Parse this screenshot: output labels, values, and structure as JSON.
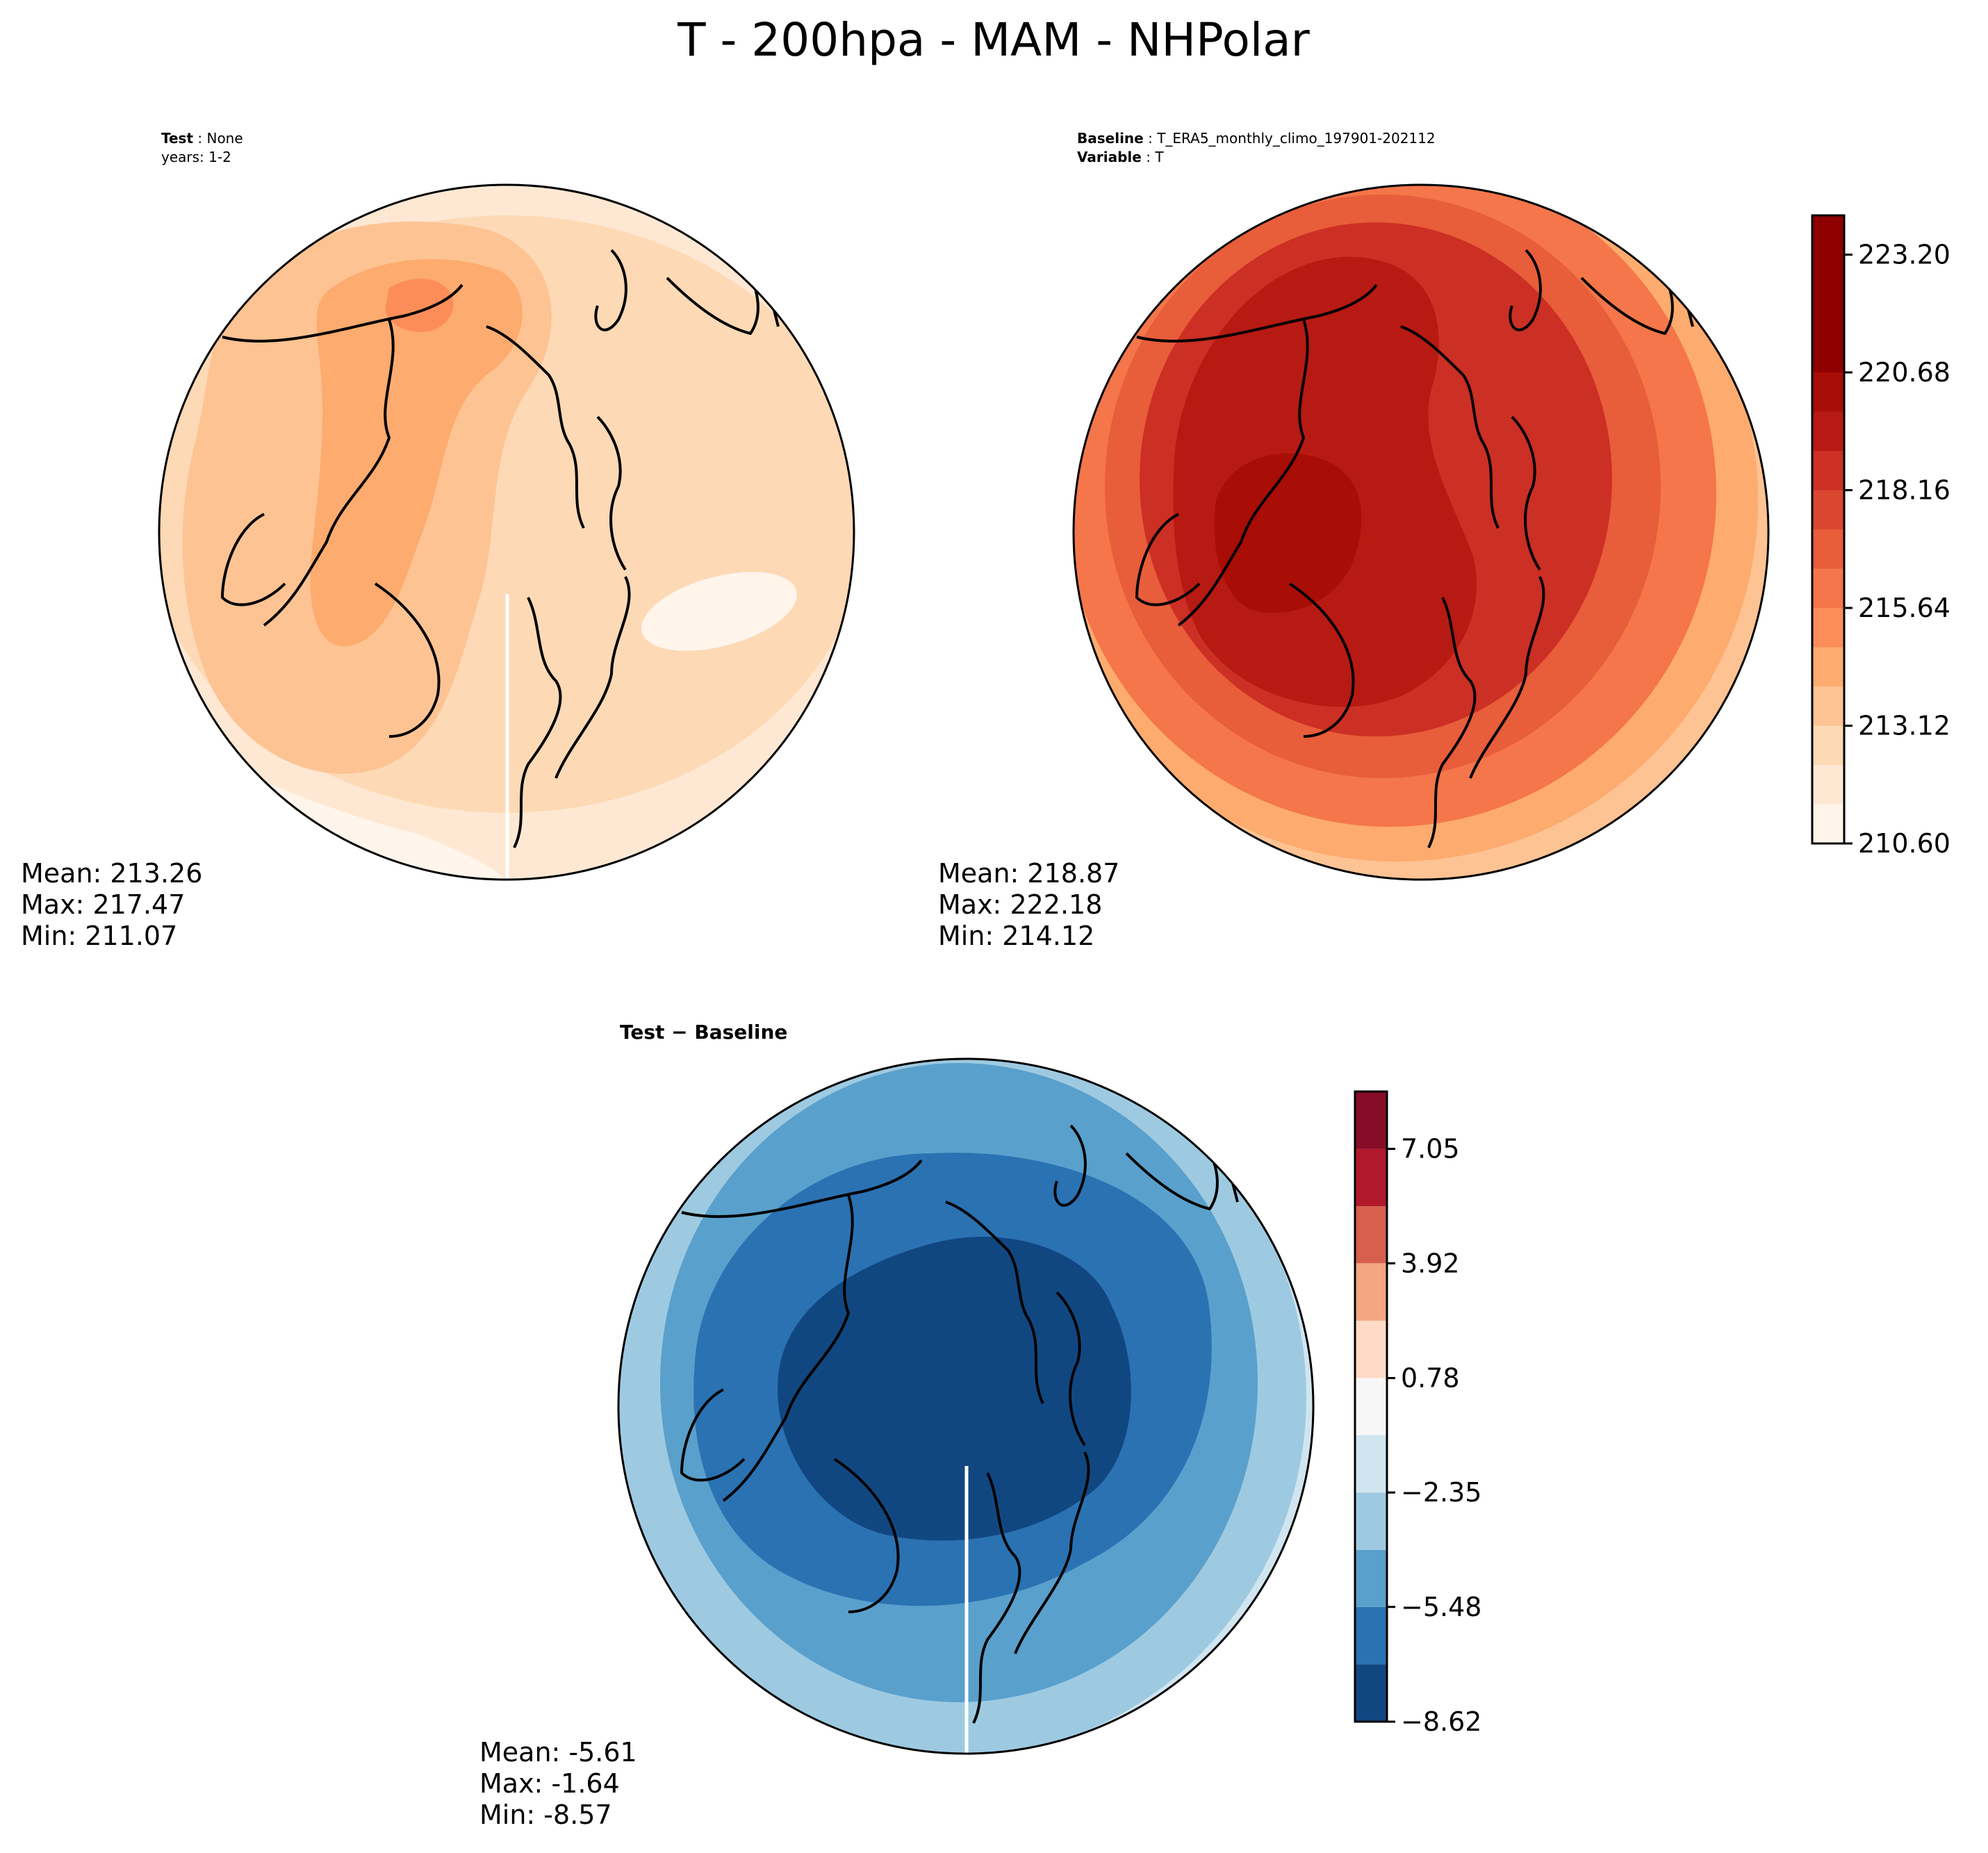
{
  "figure_title": "T - 200hpa - MAM - NHPolar",
  "chart_data": [
    {
      "type": "heatmap",
      "projection": "north-polar-stereographic",
      "panel": "test",
      "header": [
        {
          "key": "Test",
          "sep": ":",
          "value": "None"
        },
        {
          "key": "",
          "sep": "",
          "value": "years: 1-2"
        }
      ],
      "stats": {
        "mean_label": "Mean: 213.26",
        "max_label": "Max: 217.47",
        "min_label": "Min: 211.07"
      },
      "mean": 213.26,
      "max": 217.47,
      "min": 211.07,
      "colorbar": "shared-with-baseline"
    },
    {
      "type": "heatmap",
      "projection": "north-polar-stereographic",
      "panel": "baseline",
      "header": [
        {
          "key": "Baseline",
          "sep": ":",
          "value": "T_ERA5_monthly_climo_197901-202112"
        },
        {
          "key": "Variable",
          "sep": ":",
          "value": "T"
        }
      ],
      "stats": {
        "mean_label": "Mean: 218.87",
        "max_label": "Max: 222.18",
        "min_label": "Min: 214.12"
      },
      "mean": 218.87,
      "max": 222.18,
      "min": 214.12,
      "colorbar": {
        "levels": [
          210.6,
          211.44,
          212.28,
          213.12,
          213.96,
          214.8,
          215.64,
          216.48,
          217.32,
          218.16,
          219.0,
          219.84,
          220.68,
          221.52,
          222.36,
          223.2,
          224.04
        ],
        "ticks": [
          "210.60",
          "213.12",
          "215.64",
          "218.16",
          "220.68",
          "223.20"
        ],
        "colors": [
          "#fff5eb",
          "#fee8d3",
          "#fdd9b5",
          "#fdc393",
          "#fdab6e",
          "#fc8d59",
          "#f4764a",
          "#e85d3a",
          "#db4630",
          "#cc2f24",
          "#b71a12",
          "#a80d06",
          "#8f0000",
          "#8f0000",
          "#8f0000",
          "#8f0000"
        ]
      }
    },
    {
      "type": "heatmap",
      "projection": "north-polar-stereographic",
      "panel": "difference",
      "header": [
        {
          "key": "Test − Baseline",
          "sep": "",
          "value": ""
        }
      ],
      "stats": {
        "mean_label": "Mean: -5.61",
        "max_label": "Max: -1.64",
        "min_label": "Min: -8.57"
      },
      "mean": -5.61,
      "max": -1.64,
      "min": -8.57,
      "colorbar": {
        "levels": [
          -8.62,
          -7.05,
          -5.48,
          -3.92,
          -2.35,
          -0.78,
          0.78,
          2.35,
          3.92,
          5.48,
          7.05,
          8.62
        ],
        "ticks": [
          "−8.62",
          "−5.48",
          "−2.35",
          "0.78",
          "3.92",
          "7.05"
        ],
        "colors": [
          "#114781",
          "#2b72b3",
          "#5aa0cc",
          "#9ecae1",
          "#d1e5f0",
          "#f7f7f7",
          "#fddbc7",
          "#f4a582",
          "#d6604d",
          "#b2182b",
          "#860d27"
        ]
      }
    }
  ]
}
